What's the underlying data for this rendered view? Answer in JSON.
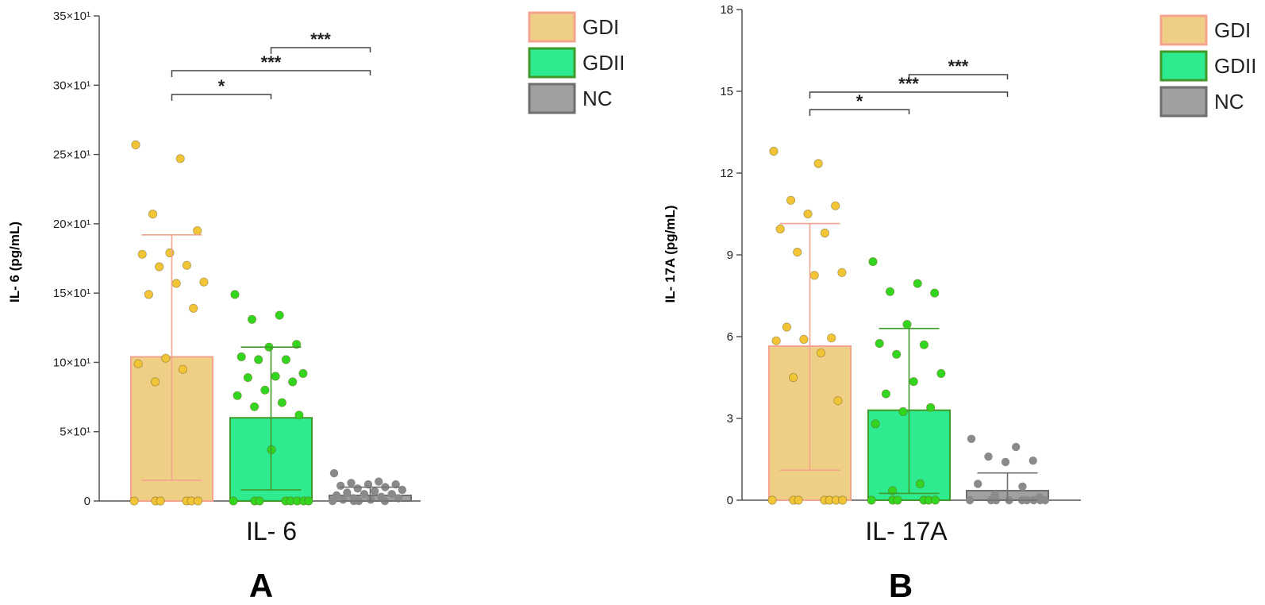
{
  "chart_data": [
    {
      "type": "bar",
      "panel_label": "A",
      "category_label": "IL- 6",
      "ylabel": "IL- 6 (pg/mL)",
      "ylim": [
        0,
        350
      ],
      "yticks": [
        0,
        50,
        100,
        150,
        200,
        250,
        300,
        350
      ],
      "ytick_labels": [
        "0",
        "5×10¹",
        "10×10¹",
        "15×10¹",
        "20×10¹",
        "25×10¹",
        "30×10¹",
        "35×10¹"
      ],
      "grid": false,
      "legend_position": "top-right",
      "series": [
        {
          "name": "GDI",
          "mean": 104,
          "err_low": 15,
          "err_high": 192,
          "points": [
            257,
            247,
            207,
            195,
            179,
            178,
            170,
            169,
            158,
            157,
            149,
            139,
            103,
            99,
            95,
            86,
            0,
            0,
            0,
            0,
            0,
            0
          ]
        },
        {
          "name": "GDII",
          "mean": 60,
          "err_low": 8,
          "err_high": 111,
          "points": [
            149,
            134,
            131,
            113,
            111,
            104,
            102,
            102,
            92,
            90,
            89,
            86,
            80,
            76,
            71,
            68,
            62,
            37,
            0,
            0,
            0,
            0,
            0,
            0,
            0,
            0
          ]
        },
        {
          "name": "NC",
          "mean": 4,
          "err_low": 0,
          "err_high": 10,
          "points": [
            20,
            14,
            13,
            12,
            12,
            11,
            10,
            9,
            8,
            7,
            6,
            5,
            5,
            4,
            3,
            2,
            2,
            1,
            1,
            0,
            0,
            0,
            0
          ]
        }
      ],
      "significance": [
        {
          "from": "GDII",
          "to": "NC",
          "label": "***"
        },
        {
          "from": "GDI",
          "to": "NC",
          "label": "***"
        },
        {
          "from": "GDI",
          "to": "GDII",
          "label": "*"
        }
      ]
    },
    {
      "type": "bar",
      "panel_label": "B",
      "category_label": "IL- 17A",
      "ylabel": "IL- 17A (pg/mL)",
      "ylim": [
        0,
        18
      ],
      "yticks": [
        0,
        3,
        6,
        9,
        12,
        15,
        18
      ],
      "ytick_labels": [
        "0",
        "3",
        "6",
        "9",
        "12",
        "15",
        "18"
      ],
      "grid": false,
      "legend_position": "top-right",
      "series": [
        {
          "name": "GDI",
          "mean": 5.65,
          "err_low": 1.1,
          "err_high": 10.15,
          "points": [
            12.8,
            12.35,
            11.0,
            10.8,
            10.5,
            9.95,
            9.8,
            9.1,
            8.35,
            8.25,
            6.35,
            5.95,
            5.9,
            5.85,
            5.4,
            4.5,
            3.65,
            0,
            0,
            0,
            0,
            0,
            0,
            0
          ]
        },
        {
          "name": "GDII",
          "mean": 3.3,
          "err_low": 0.25,
          "err_high": 6.3,
          "points": [
            8.75,
            7.95,
            7.65,
            7.6,
            6.45,
            5.75,
            5.7,
            5.35,
            4.65,
            4.35,
            3.9,
            3.4,
            3.25,
            2.8,
            0.6,
            0.35,
            0,
            0,
            0,
            0,
            0,
            0
          ]
        },
        {
          "name": "NC",
          "mean": 0.35,
          "err_low": 0,
          "err_high": 1.0,
          "points": [
            2.25,
            1.95,
            1.6,
            1.45,
            1.4,
            0.6,
            0.5,
            0.2,
            0.1,
            0,
            0,
            0,
            0,
            0,
            0,
            0,
            0,
            0
          ]
        }
      ],
      "significance": [
        {
          "from": "GDII",
          "to": "NC",
          "label": "***"
        },
        {
          "from": "GDI",
          "to": "NC",
          "label": "***"
        },
        {
          "from": "GDI",
          "to": "GDII",
          "label": "*"
        }
      ]
    }
  ],
  "legend": [
    {
      "name": "GDI",
      "fill": "#efcf86",
      "stroke": "#f4a38f"
    },
    {
      "name": "GDII",
      "fill": "#2eeb8f",
      "stroke": "#3f9a2a"
    },
    {
      "name": "NC",
      "fill": "#a0a0a0",
      "stroke": "#6e6e6e"
    }
  ],
  "colors": {
    "GDI_point": "#f2c537",
    "GDII_point": "#33d61e",
    "NC_point": "#8a8a8a",
    "axis": "#555555"
  }
}
